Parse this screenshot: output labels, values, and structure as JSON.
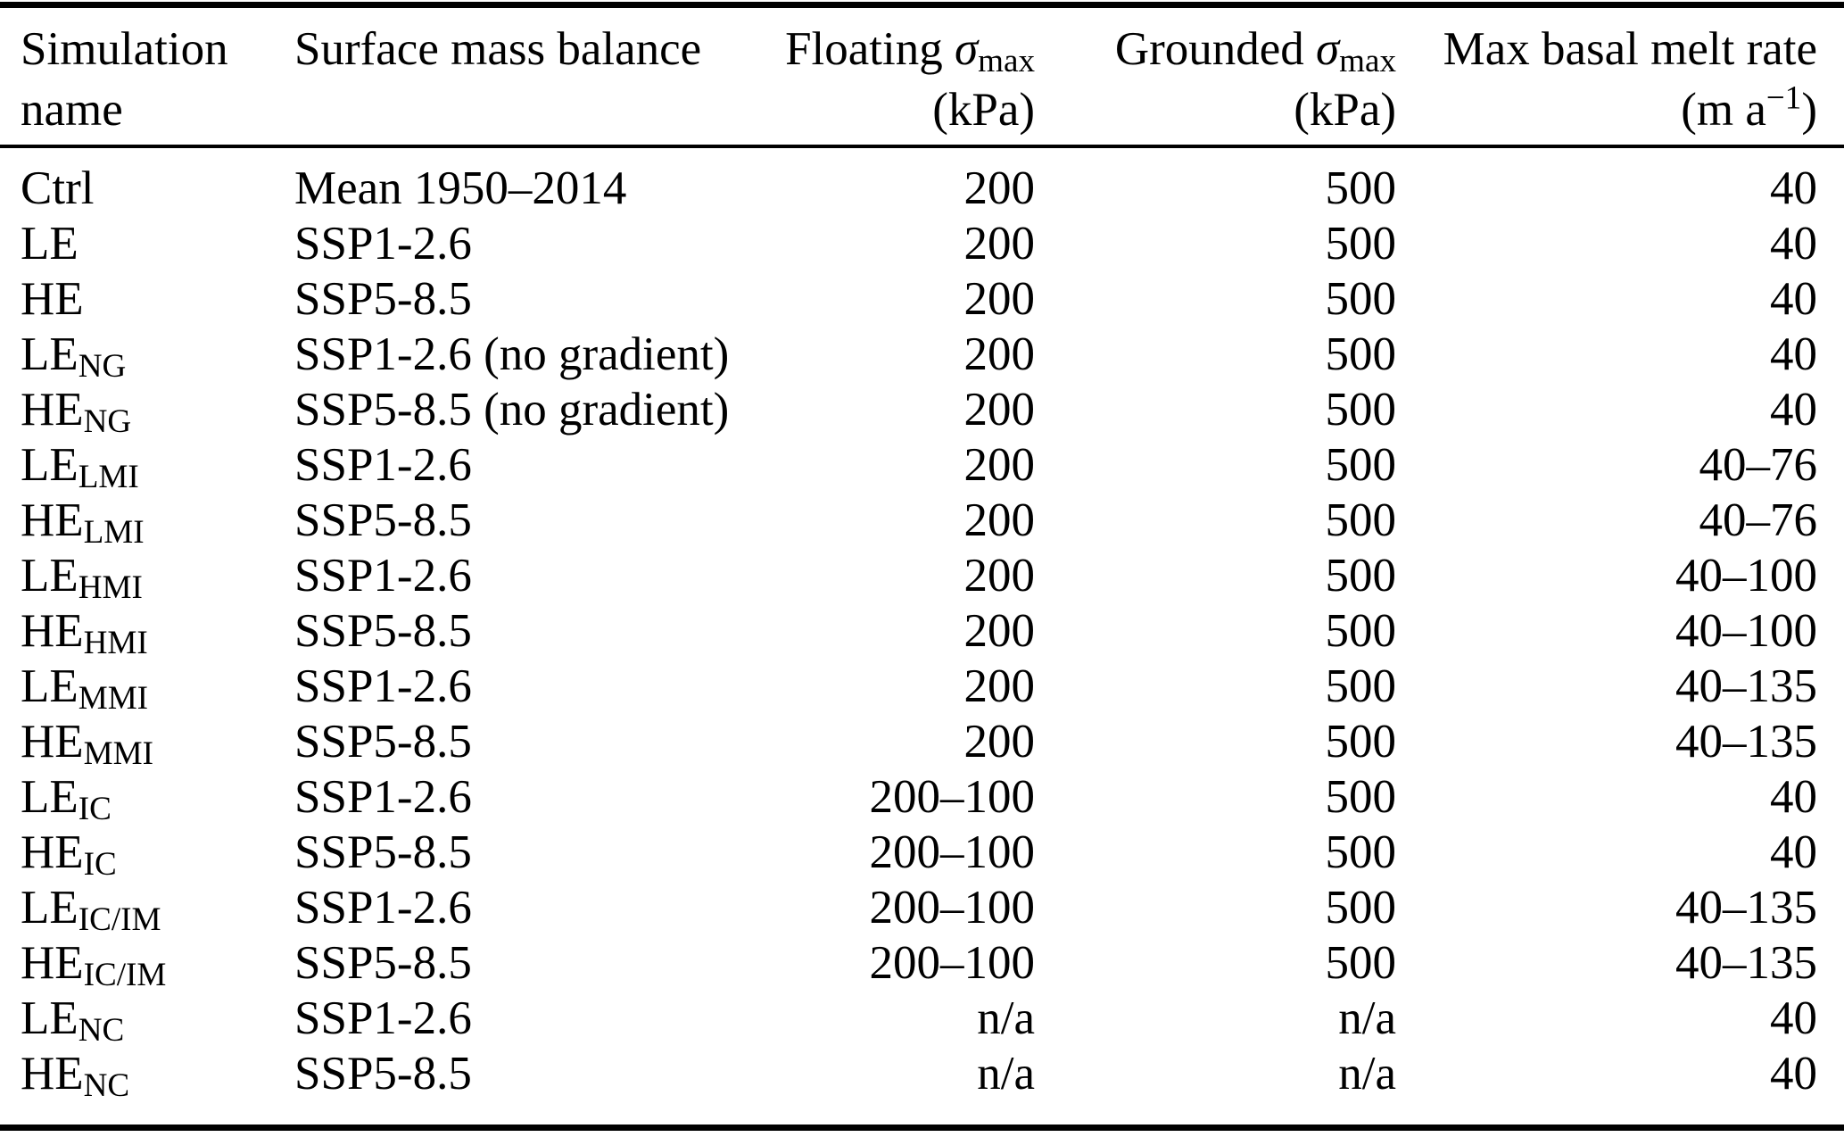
{
  "colors": {
    "text": "#000000",
    "background": "#ffffff",
    "rule": "#000000"
  },
  "table": {
    "columns": [
      {
        "id": "name",
        "line1": "Simulation",
        "line2": "name",
        "align": "left"
      },
      {
        "id": "smb",
        "line1": "Surface mass balance",
        "line2": "",
        "align": "left"
      },
      {
        "id": "floating",
        "line1": "Floating σ_{max}",
        "line2": "(kPa)",
        "align": "right"
      },
      {
        "id": "grounded",
        "line1": "Grounded σ_{max}",
        "line2": "(kPa)",
        "align": "right"
      },
      {
        "id": "melt",
        "line1": "Max basal melt rate",
        "line2": "(m a^{−1})",
        "align": "right"
      }
    ],
    "rows": [
      {
        "name": "Ctrl",
        "smb": "Mean 1950–2014",
        "floating": "200",
        "grounded": "500",
        "melt": "40"
      },
      {
        "name": "LE",
        "smb": "SSP1-2.6",
        "floating": "200",
        "grounded": "500",
        "melt": "40"
      },
      {
        "name": "HE",
        "smb": "SSP5-8.5",
        "floating": "200",
        "grounded": "500",
        "melt": "40"
      },
      {
        "name": "LE_{NG}",
        "smb": "SSP1-2.6 (no gradient)",
        "floating": "200",
        "grounded": "500",
        "melt": "40"
      },
      {
        "name": "HE_{NG}",
        "smb": "SSP5-8.5 (no gradient)",
        "floating": "200",
        "grounded": "500",
        "melt": "40"
      },
      {
        "name": "LE_{LMI}",
        "smb": "SSP1-2.6",
        "floating": "200",
        "grounded": "500",
        "melt": "40–76"
      },
      {
        "name": "HE_{LMI}",
        "smb": "SSP5-8.5",
        "floating": "200",
        "grounded": "500",
        "melt": "40–76"
      },
      {
        "name": "LE_{HMI}",
        "smb": "SSP1-2.6",
        "floating": "200",
        "grounded": "500",
        "melt": "40–100"
      },
      {
        "name": "HE_{HMI}",
        "smb": "SSP5-8.5",
        "floating": "200",
        "grounded": "500",
        "melt": "40–100"
      },
      {
        "name": "LE_{MMI}",
        "smb": "SSP1-2.6",
        "floating": "200",
        "grounded": "500",
        "melt": "40–135"
      },
      {
        "name": "HE_{MMI}",
        "smb": "SSP5-8.5",
        "floating": "200",
        "grounded": "500",
        "melt": "40–135"
      },
      {
        "name": "LE_{IC}",
        "smb": "SSP1-2.6",
        "floating": "200–100",
        "grounded": "500",
        "melt": "40"
      },
      {
        "name": "HE_{IC}",
        "smb": "SSP5-8.5",
        "floating": "200–100",
        "grounded": "500",
        "melt": "40"
      },
      {
        "name": "LE_{IC/IM}",
        "smb": "SSP1-2.6",
        "floating": "200–100",
        "grounded": "500",
        "melt": "40–135"
      },
      {
        "name": "HE_{IC/IM}",
        "smb": "SSP5-8.5",
        "floating": "200–100",
        "grounded": "500",
        "melt": "40–135"
      },
      {
        "name": "LE_{NC}",
        "smb": "SSP1-2.6",
        "floating": "n/a",
        "grounded": "n/a",
        "melt": "40"
      },
      {
        "name": "HE_{NC}",
        "smb": "SSP5-8.5",
        "floating": "n/a",
        "grounded": "n/a",
        "melt": "40"
      }
    ]
  }
}
